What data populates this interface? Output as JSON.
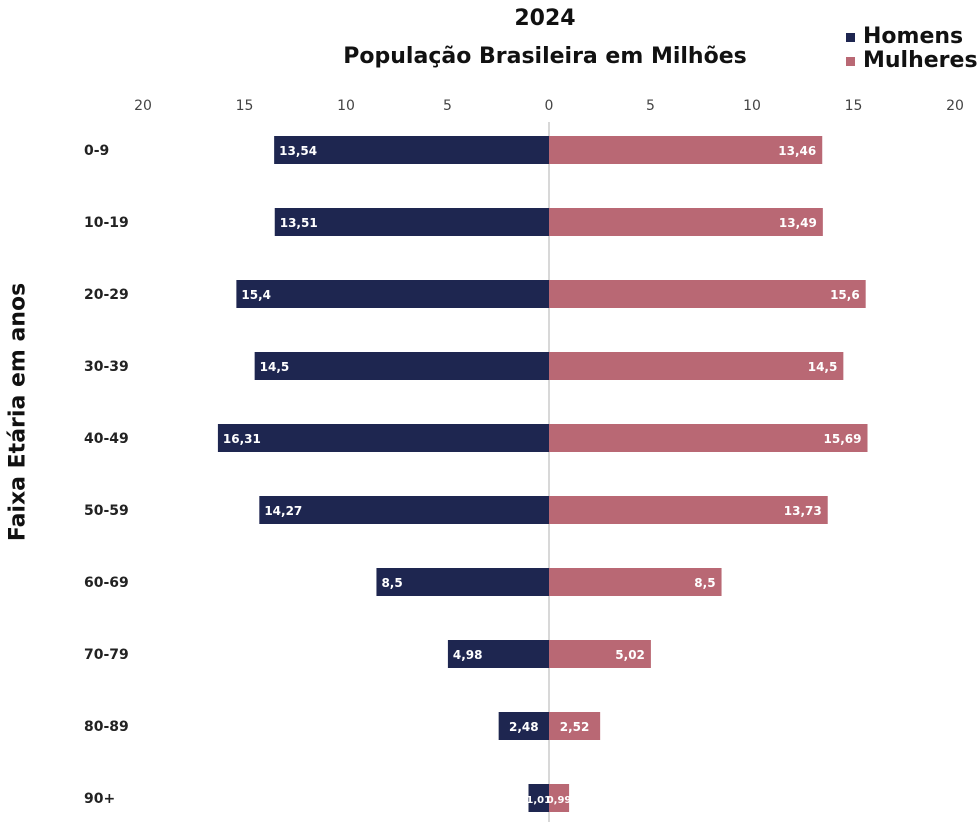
{
  "chart_data": {
    "type": "bar",
    "title": "2024",
    "subtitle": "População Brasileira em Milhões",
    "ylabel": "Faixa Etária em anos",
    "xlabel": "",
    "categories": [
      "0-9",
      "10-19",
      "20-29",
      "30-39",
      "40-49",
      "50-59",
      "60-69",
      "70-79",
      "80-89",
      "90+"
    ],
    "series": [
      {
        "name": "Homens",
        "color": "#1e2650",
        "values": [
          13.54,
          13.51,
          15.4,
          14.5,
          16.31,
          14.27,
          8.5,
          4.98,
          2.48,
          1.01
        ],
        "labels": [
          "13,54",
          "13,51",
          "15,4",
          "14,5",
          "16,31",
          "14,27",
          "8,5",
          "4,98",
          "2,48",
          "1,01"
        ]
      },
      {
        "name": "Mulheres",
        "color": "#b96874",
        "values": [
          13.46,
          13.49,
          15.6,
          14.5,
          15.69,
          13.73,
          8.5,
          5.02,
          2.52,
          0.99
        ],
        "labels": [
          "13,46",
          "13,49",
          "15,6",
          "14,5",
          "15,69",
          "13,73",
          "8,5",
          "5,02",
          "2,52",
          "0,99"
        ]
      }
    ],
    "xlim": [
      -20,
      20
    ],
    "xticks": [
      "20",
      "15",
      "10",
      "5",
      "0",
      "5",
      "10",
      "15",
      "20"
    ],
    "grid": false,
    "legend_position": "top-right",
    "orientation": "horizontal-pyramid"
  }
}
